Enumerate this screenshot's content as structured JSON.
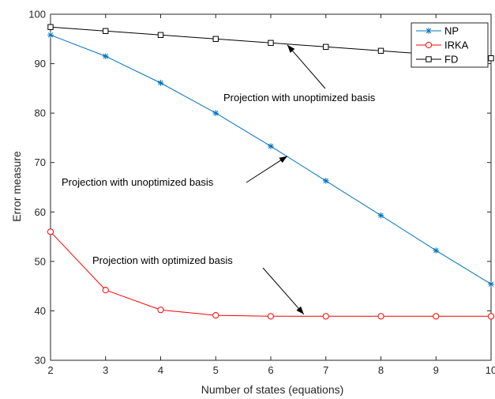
{
  "chart_data": {
    "type": "line",
    "xlabel": "Number of states (equations)",
    "ylabel": "Error measure",
    "xlim": [
      2,
      10
    ],
    "ylim": [
      30,
      100
    ],
    "xticks": [
      2,
      3,
      4,
      5,
      6,
      7,
      8,
      9,
      10
    ],
    "yticks": [
      30,
      40,
      50,
      60,
      70,
      80,
      90,
      100
    ],
    "x": [
      2,
      3,
      4,
      5,
      6,
      7,
      8,
      9,
      10
    ],
    "legend_position": "top-right",
    "series": [
      {
        "name": "NP",
        "color": "#0072bd",
        "marker": "star",
        "values": [
          95.8,
          91.5,
          86.1,
          80.0,
          73.3,
          66.3,
          59.3,
          52.2,
          45.4
        ]
      },
      {
        "name": "IRKA",
        "color": "#ff0000",
        "marker": "circle",
        "values": [
          56.0,
          44.2,
          40.2,
          39.1,
          38.9,
          38.9,
          38.9,
          38.9,
          38.9
        ]
      },
      {
        "name": "FD",
        "color": "#000000",
        "marker": "square",
        "values": [
          97.4,
          96.6,
          95.8,
          95.0,
          94.2,
          93.4,
          92.6,
          91.8,
          91.1
        ]
      }
    ],
    "annotations": [
      {
        "text": "Projection with unoptimized basis",
        "at": [
          6.3,
          93.8
        ]
      },
      {
        "text": "Projection with unoptimized basis",
        "at": [
          6.3,
          71.3
        ]
      },
      {
        "text": "Projection with optimized basis",
        "at": [
          6.6,
          39.3
        ]
      }
    ]
  }
}
